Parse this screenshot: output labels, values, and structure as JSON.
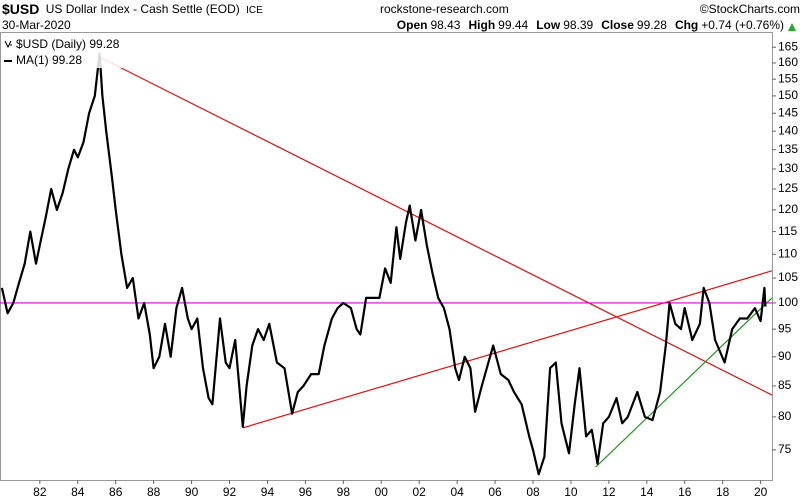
{
  "header": {
    "symbol": "$USD",
    "name": "US Dollar Index - Cash Settle (EOD)",
    "exchange": "ICE",
    "date": "30-Mar-2020",
    "source": "rockstone-research.com",
    "credit": "©StockCharts.com",
    "quote": [
      {
        "label": "Open",
        "value": "98.43"
      },
      {
        "label": "High",
        "value": "99.44"
      },
      {
        "label": "Low",
        "value": "98.39"
      },
      {
        "label": "Close",
        "value": "99.28"
      },
      {
        "label": "Chg",
        "value": "+0.74 (+0.76%)"
      }
    ]
  },
  "chart_data": {
    "type": "line",
    "log_scale": true,
    "grid": false,
    "x": [
      1980.0,
      1980.3,
      1980.6,
      1980.9,
      1981.2,
      1981.5,
      1981.8,
      1982.0,
      1982.3,
      1982.6,
      1982.9,
      1983.2,
      1983.5,
      1983.8,
      1984.0,
      1984.3,
      1984.6,
      1984.9,
      1985.15,
      1985.3,
      1985.5,
      1985.8,
      1986.0,
      1986.3,
      1986.6,
      1986.9,
      1987.2,
      1987.5,
      1987.8,
      1988.0,
      1988.3,
      1988.6,
      1988.9,
      1989.2,
      1989.5,
      1989.8,
      1990.0,
      1990.3,
      1990.6,
      1990.9,
      1991.1,
      1991.5,
      1991.8,
      1992.0,
      1992.3,
      1992.7,
      1992.9,
      1993.2,
      1993.5,
      1993.8,
      1994.1,
      1994.5,
      1994.9,
      1995.3,
      1995.6,
      1995.9,
      1996.3,
      1996.7,
      1997.0,
      1997.4,
      1997.7,
      1998.0,
      1998.4,
      1998.7,
      1998.9,
      1999.2,
      1999.6,
      1999.9,
      2000.2,
      2000.5,
      2000.8,
      2001.0,
      2001.3,
      2001.5,
      2001.8,
      2002.1,
      2002.4,
      2002.7,
      2003.0,
      2003.3,
      2003.6,
      2003.9,
      2004.1,
      2004.4,
      2004.7,
      2004.95,
      2005.3,
      2005.9,
      2006.3,
      2006.7,
      2007.0,
      2007.4,
      2007.8,
      2008.0,
      2008.3,
      2008.6,
      2008.9,
      2009.2,
      2009.5,
      2009.9,
      2010.2,
      2010.45,
      2010.8,
      2011.1,
      2011.4,
      2011.7,
      2012.0,
      2012.4,
      2012.7,
      2013.0,
      2013.5,
      2013.9,
      2014.3,
      2014.7,
      2015.0,
      2015.2,
      2015.5,
      2015.8,
      2016.0,
      2016.4,
      2016.8,
      2017.0,
      2017.3,
      2017.6,
      2018.1,
      2018.5,
      2018.9,
      2019.3,
      2019.7,
      2020.0,
      2020.2,
      2020.25
    ],
    "series": [
      {
        "name": "$USD (Daily) 99.28",
        "color": "#000000",
        "values": [
          103,
          98,
          100,
          104,
          108,
          115,
          108,
          112,
          118,
          125,
          120,
          124,
          130,
          135,
          133,
          137,
          145,
          150,
          163,
          150,
          140,
          128,
          120,
          110,
          103,
          105,
          97,
          100,
          94,
          88,
          90,
          96,
          90,
          99,
          103,
          97,
          95,
          97,
          88,
          83,
          82,
          97,
          89,
          88,
          93,
          78.5,
          85,
          92,
          95,
          93,
          96,
          89,
          88,
          80.5,
          84,
          85,
          87,
          87,
          92,
          97,
          99,
          100,
          99,
          95,
          94,
          101,
          101,
          101,
          107,
          104,
          116,
          109,
          117,
          121,
          113,
          120,
          112,
          106,
          101,
          99,
          95,
          88,
          86,
          90,
          88,
          80.8,
          85,
          92,
          87,
          86,
          84,
          82,
          77,
          75,
          71.5,
          74,
          88,
          89,
          79,
          74.5,
          82,
          88,
          77,
          78,
          73,
          79,
          80,
          83,
          79,
          80,
          84,
          80,
          79.5,
          84,
          92,
          100,
          96,
          95,
          99,
          93,
          96,
          103,
          100,
          93,
          89,
          95,
          97,
          97,
          99,
          96.5,
          103,
          99.28
        ]
      }
    ],
    "legend_items": [
      "MA(1) 99.28"
    ],
    "trendlines": [
      {
        "x": [
          1985.1,
          2020.6
        ],
        "values": [
          162,
          83.5
        ],
        "color": "#e01010"
      },
      {
        "x": [
          1992.7,
          2020.6
        ],
        "values": [
          78.3,
          106.5
        ],
        "color": "#e01010"
      },
      {
        "x": [
          2011.3,
          2020.6
        ],
        "values": [
          72.5,
          101
        ],
        "color": "#229922"
      },
      {
        "x": [
          1979.9,
          2020.6
        ],
        "values": [
          100,
          100
        ],
        "color": "#dd00dd"
      }
    ],
    "xlim": [
      1979.9,
      2020.6
    ],
    "ylim": [
      70.7,
      170
    ],
    "xticks": [
      {
        "value": 1982,
        "label": "82"
      },
      {
        "value": 1984,
        "label": "84"
      },
      {
        "value": 1986,
        "label": "86"
      },
      {
        "value": 1988,
        "label": "88"
      },
      {
        "value": 1990,
        "label": "90"
      },
      {
        "value": 1992,
        "label": "92"
      },
      {
        "value": 1994,
        "label": "94"
      },
      {
        "value": 1996,
        "label": "96"
      },
      {
        "value": 1998,
        "label": "98"
      },
      {
        "value": 2000,
        "label": "00"
      },
      {
        "value": 2002,
        "label": "02"
      },
      {
        "value": 2004,
        "label": "04"
      },
      {
        "value": 2006,
        "label": "06"
      },
      {
        "value": 2008,
        "label": "08"
      },
      {
        "value": 2010,
        "label": "10"
      },
      {
        "value": 2012,
        "label": "12"
      },
      {
        "value": 2014,
        "label": "14"
      },
      {
        "value": 2016,
        "label": "16"
      },
      {
        "value": 2018,
        "label": "18"
      },
      {
        "value": 2020,
        "label": "20"
      }
    ],
    "yticks": [
      75,
      80,
      85,
      90,
      95,
      100,
      105,
      110,
      115,
      120,
      125,
      130,
      135,
      140,
      145,
      150,
      155,
      160,
      165
    ]
  }
}
